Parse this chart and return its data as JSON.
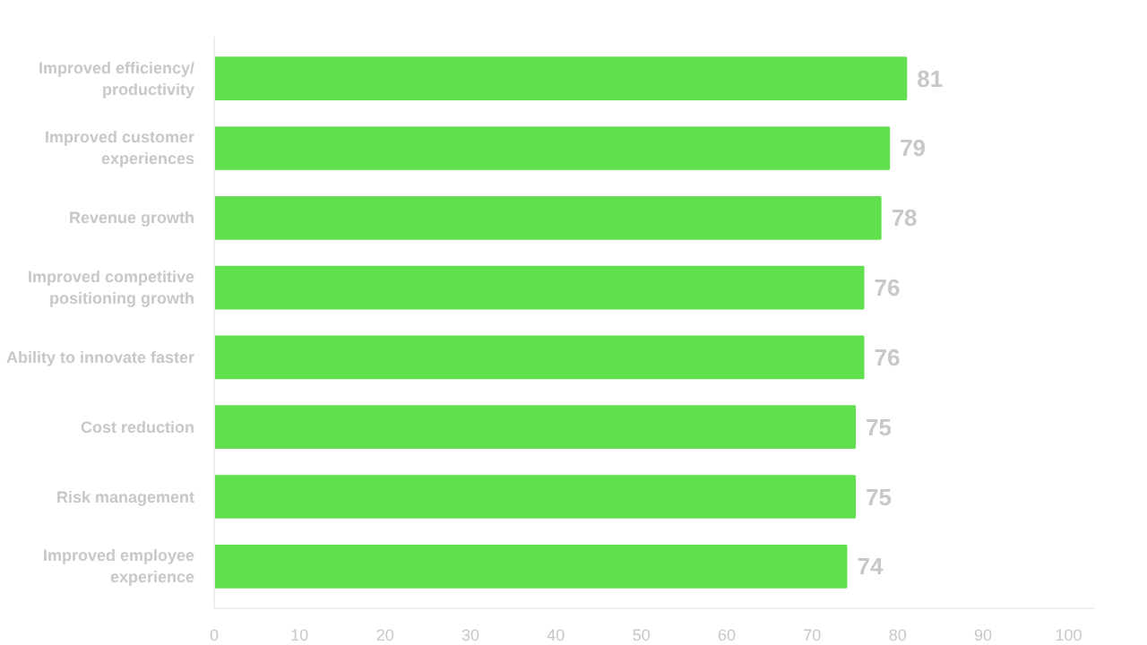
{
  "chart_data": {
    "type": "bar",
    "orientation": "horizontal",
    "categories": [
      "Improved efficiency/ productivity",
      "Improved customer experiences",
      "Revenue growth",
      "Improved competitive positioning growth",
      "Ability to innovate faster",
      "Cost reduction",
      "Risk management",
      "Improved employee experience"
    ],
    "values": [
      81,
      79,
      78,
      76,
      76,
      75,
      75,
      74
    ],
    "color": "#62df4e",
    "data_labels": true,
    "xlim": [
      0,
      103
    ],
    "xticks": [
      0,
      10,
      20,
      30,
      40,
      50,
      60,
      70,
      80,
      90,
      100
    ],
    "grid": false
  }
}
